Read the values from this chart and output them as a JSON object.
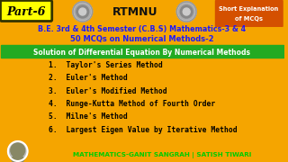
{
  "bg_color": "#f5a500",
  "title_part": "Part-6",
  "title_center": "RTMNU",
  "short_exp_line1": "Short Explanation",
  "short_exp_line2": "of MCQs",
  "short_exp_bg": "#d45000",
  "subtitle1": "B.E. 3rd & 4th Semester (C.B.S) Mathematics-3 & 4",
  "subtitle2": "50 MCQs on Numerical Methods-2",
  "subtitle_color": "#1a1aff",
  "green_banner": "Solution of Differential Equation By Numerical Methods",
  "green_banner_bg": "#22aa22",
  "green_banner_text_color": "#ffffff",
  "items": [
    "1.  Taylor's Series Method",
    "2.  Euler's Method",
    "3.  Euler's Modified Method",
    "4.  Runge-Kutta Method of Fourth Order",
    "5.  Milne's Method",
    "6.  Largest Eigen Value by Iterative Method"
  ],
  "items_text_color": "#000000",
  "footer_text": "MATHEMATICS-GANIT SANGRAH | SATISH TIWARI",
  "footer_color": "#00cc00",
  "part_box_border": "#ffff00",
  "part_text_color": "#000000",
  "part_box_bg": "#ffff00"
}
